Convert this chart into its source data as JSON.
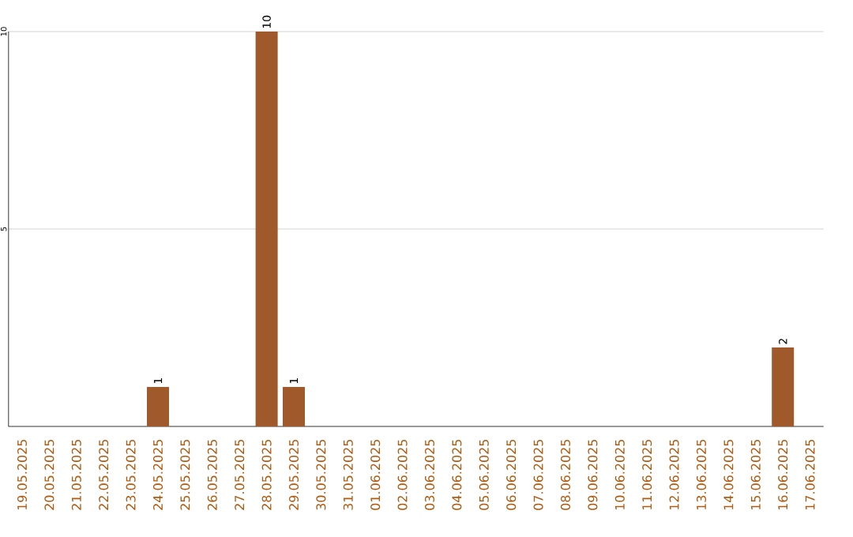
{
  "chart_data": {
    "type": "bar",
    "categories": [
      "19.05.2025",
      "20.05.2025",
      "21.05.2025",
      "22.05.2025",
      "23.05.2025",
      "24.05.2025",
      "25.05.2025",
      "26.05.2025",
      "27.05.2025",
      "28.05.2025",
      "29.05.2025",
      "30.05.2025",
      "31.05.2025",
      "01.06.2025",
      "02.06.2025",
      "03.06.2025",
      "04.06.2025",
      "05.06.2025",
      "06.06.2025",
      "07.06.2025",
      "08.06.2025",
      "09.06.2025",
      "10.06.2025",
      "11.06.2025",
      "12.06.2025",
      "13.06.2025",
      "14.06.2025",
      "15.06.2025",
      "16.06.2025",
      "17.06.2025"
    ],
    "values": [
      0,
      0,
      0,
      0,
      0,
      1,
      0,
      0,
      0,
      10,
      1,
      0,
      0,
      0,
      0,
      0,
      0,
      0,
      0,
      0,
      0,
      0,
      0,
      0,
      0,
      0,
      0,
      0,
      2,
      0
    ],
    "value_labels": [
      null,
      null,
      null,
      null,
      null,
      "1",
      null,
      null,
      null,
      "10",
      "1",
      null,
      null,
      null,
      null,
      null,
      null,
      null,
      null,
      null,
      null,
      null,
      null,
      null,
      null,
      null,
      null,
      null,
      "2",
      null
    ],
    "color": "#a0592a",
    "ylim": [
      0,
      10
    ],
    "yticks": [
      5,
      10
    ],
    "grid": "y"
  }
}
